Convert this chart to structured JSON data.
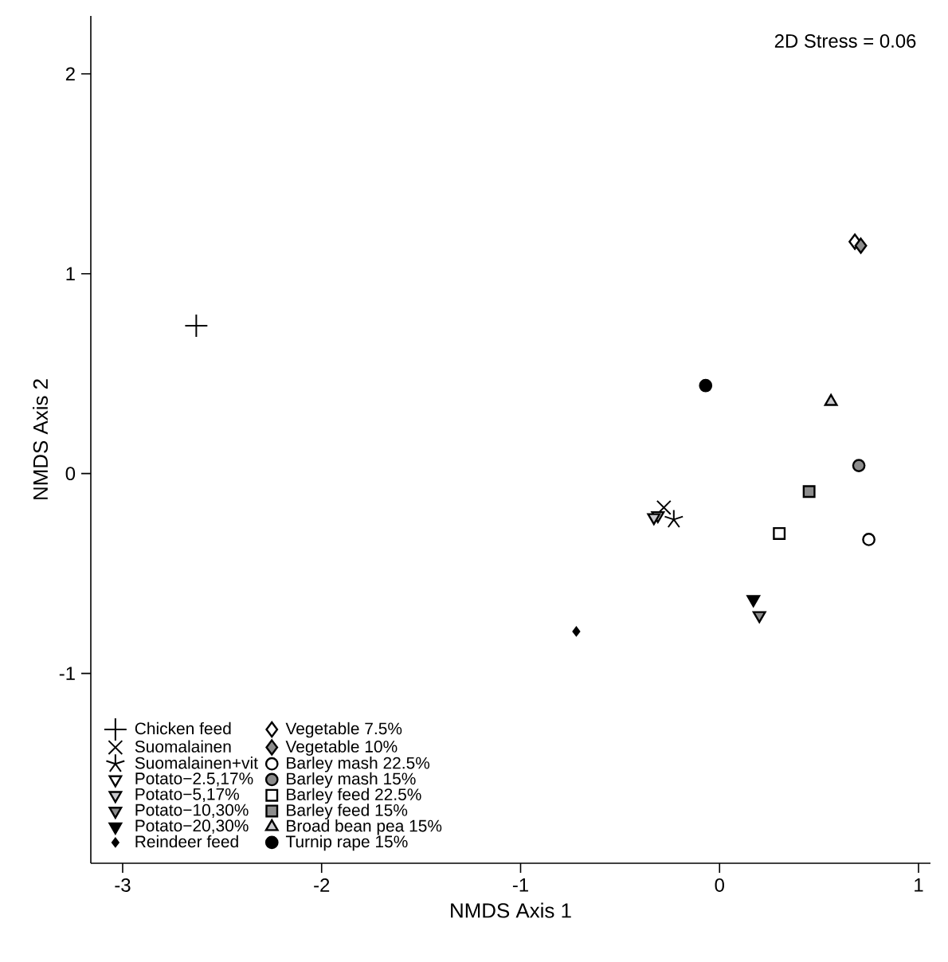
{
  "chart_data": {
    "type": "scatter",
    "xlabel": "NMDS Axis 1",
    "ylabel": "NMDS Axis 2",
    "xlim": [
      -3.16,
      1.06
    ],
    "ylim": [
      -1.95,
      2.29
    ],
    "xticks": [
      -3,
      -2,
      -1,
      0,
      1
    ],
    "yticks": [
      -1,
      0,
      1,
      2
    ],
    "grid": false,
    "legend": "bottom left",
    "annotations": [
      "2D Stress = 0.06"
    ],
    "series": [
      {
        "name": "Chicken feed",
        "marker": "plus",
        "color": "#000000",
        "x": [
          -2.63
        ],
        "values": [
          0.74
        ]
      },
      {
        "name": "Suomalainen",
        "marker": "cross",
        "color": "#000000",
        "x": [
          -0.28
        ],
        "values": [
          -0.17
        ]
      },
      {
        "name": "Suomalainen+vit",
        "color": "#000000",
        "x": [
          -0.23
        ],
        "values": [
          -0.23
        ]
      },
      {
        "name": "Potato−2.5,17%",
        "marker": "triangle-down",
        "color": "#ffffff",
        "x": [
          -0.31
        ],
        "values": [
          -0.21
        ]
      },
      {
        "name": "Potato−5,17%",
        "marker": "triangle-down",
        "color": "#c8c8cc",
        "x": [
          -0.33
        ],
        "values": [
          -0.22
        ]
      },
      {
        "name": "Potato−10,30%",
        "marker": "triangle-down",
        "color": "#8c8c8c",
        "x": [
          0.2
        ],
        "values": [
          -0.71
        ]
      },
      {
        "name": "Potato−20,30%",
        "marker": "triangle-down",
        "color": "#000000",
        "x": [
          0.17
        ],
        "values": [
          -0.63
        ]
      },
      {
        "name": "Reindeer feed",
        "marker": "diamond",
        "color": "#000000",
        "x": [
          -0.72
        ],
        "values": [
          -0.79
        ]
      },
      {
        "name": "Vegetable 7.5%",
        "marker": "diamond",
        "color": "#ffffff",
        "x": [
          0.68
        ],
        "values": [
          1.16
        ]
      },
      {
        "name": "Vegetable 10%",
        "marker": "diamond",
        "color": "#8c8c8c",
        "x": [
          0.71
        ],
        "values": [
          1.14
        ]
      },
      {
        "name": "Barley mash 22.5%",
        "marker": "circle",
        "color": "#ffffff",
        "x": [
          0.75
        ],
        "values": [
          -0.33
        ]
      },
      {
        "name": "Barley mash 15%",
        "marker": "circle",
        "color": "#8c8c8c",
        "x": [
          0.7
        ],
        "values": [
          0.04
        ]
      },
      {
        "name": "Barley feed 22.5%",
        "marker": "square",
        "color": "#ffffff",
        "x": [
          0.3
        ],
        "values": [
          -0.3
        ]
      },
      {
        "name": "Barley feed 15%",
        "marker": "square",
        "color": "#8c8c8c",
        "x": [
          0.45
        ],
        "values": [
          -0.09
        ]
      },
      {
        "name": "Broad bean pea 15%",
        "marker": "triangle",
        "color": "#c8c8cc",
        "x": [
          0.56
        ],
        "values": [
          0.36
        ]
      },
      {
        "name": "Turnip rape 15%",
        "marker": "circle",
        "color": "#000000",
        "x": [
          -0.07
        ],
        "values": [
          0.44
        ]
      }
    ]
  }
}
